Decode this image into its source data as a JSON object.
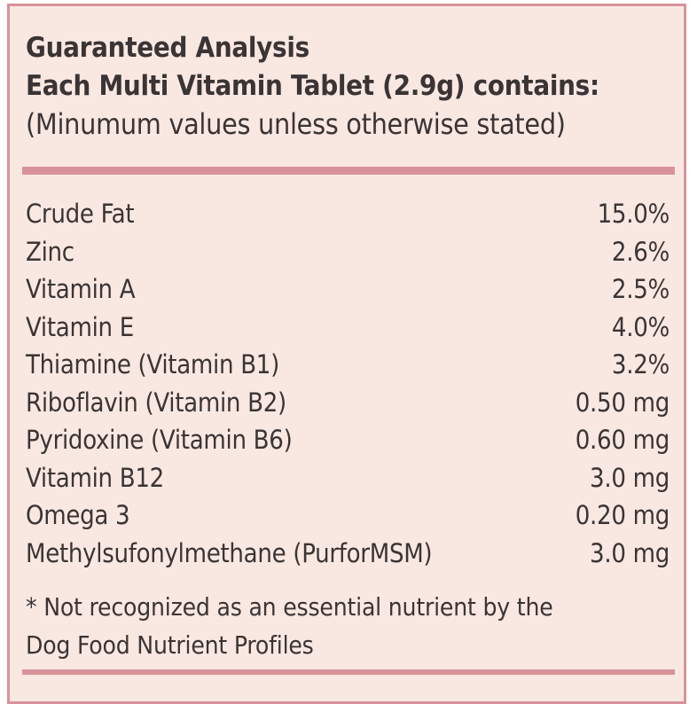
{
  "heading": {
    "title": "Guaranteed Analysis",
    "subtitle": "Each Multi Vitamin Tablet (2.9g) contains:",
    "note": "(Minumum values unless otherwise stated)"
  },
  "nutrients": [
    {
      "name": "Crude Fat",
      "value": "15.0%"
    },
    {
      "name": "Zinc",
      "value": "2.6%"
    },
    {
      "name": "Vitamin A",
      "value": "2.5%"
    },
    {
      "name": "Vitamin E",
      "value": "4.0%"
    },
    {
      "name": "Thiamine (Vitamin B1)",
      "value": "3.2%"
    },
    {
      "name": "Riboflavin (Vitamin B2)",
      "value": "0.50 mg"
    },
    {
      "name": "Pyridoxine (Vitamin B6)",
      "value": "0.60 mg"
    },
    {
      "name": "Vitamin B12",
      "value": "3.0 mg"
    },
    {
      "name": "Omega 3",
      "value": "0.20 mg"
    },
    {
      "name": "Methylsufonylmethane (PurforMSM)",
      "value": "3.0 mg"
    }
  ],
  "footnote": {
    "line1": "* Not recognized as an essential nutrient by the",
    "line2": "Dog Food Nutrient Profiles"
  },
  "colors": {
    "background": "#f9e8e2",
    "accent": "#d8939a",
    "text": "#3b3434"
  }
}
